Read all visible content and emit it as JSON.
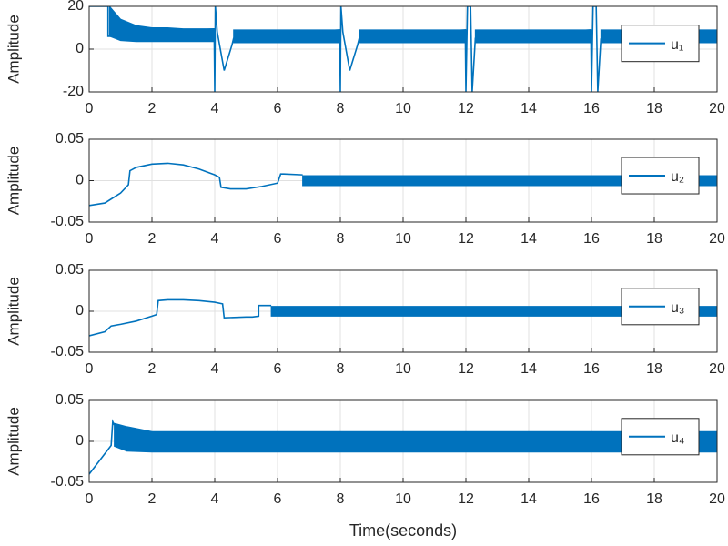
{
  "chart_data": [
    {
      "type": "line",
      "ylabel": "Amplitude",
      "xlim": [
        0,
        20
      ],
      "ylim": [
        -20,
        20
      ],
      "xticks": [
        0,
        2,
        4,
        6,
        8,
        10,
        12,
        14,
        16,
        18,
        20
      ],
      "yticks": [
        -20,
        0,
        20
      ],
      "grid": true,
      "legend": "right",
      "series": [
        {
          "name": "u₁",
          "color": "#0072bd",
          "x": [
            0,
            0.6,
            0.6,
            0.65,
            3.98,
            4.0,
            4.02,
            4.08,
            4.3,
            4.55,
            4.6,
            7.98,
            8.0,
            8.02,
            8.08,
            8.3,
            8.55,
            8.6,
            11.98,
            12.0,
            12.05,
            12.15,
            12.2,
            12.3,
            15.98,
            16.0,
            16.05,
            16.15,
            16.2,
            16.3
          ],
          "values": [
            20,
            20,
            6,
            6,
            9.5,
            -20,
            20,
            8,
            -10,
            2,
            5,
            9,
            -20,
            20,
            8,
            -10,
            2,
            5,
            9,
            -20,
            20,
            20,
            -20,
            5,
            9,
            -20,
            20,
            20,
            -20,
            5
          ]
        }
      ],
      "bands": [
        {
          "x": [
            0.65,
            1,
            1.5,
            2,
            2.5,
            3,
            4
          ],
          "upper": [
            20,
            14,
            11,
            10,
            10,
            9.5,
            9.5
          ],
          "lower": [
            6,
            4,
            3.5,
            3.5,
            3.5,
            3.5,
            3.5
          ]
        },
        {
          "x": [
            4.6,
            8
          ],
          "upper": [
            9,
            9
          ],
          "lower": [
            3,
            3
          ]
        },
        {
          "x": [
            8.6,
            12
          ],
          "upper": [
            9,
            9
          ],
          "lower": [
            3,
            3
          ]
        },
        {
          "x": [
            12.3,
            16
          ],
          "upper": [
            9,
            9
          ],
          "lower": [
            3,
            3
          ]
        },
        {
          "x": [
            16.3,
            20
          ],
          "upper": [
            9,
            9
          ],
          "lower": [
            3,
            3
          ]
        }
      ]
    },
    {
      "type": "line",
      "ylabel": "Amplitude",
      "xlim": [
        0,
        20
      ],
      "ylim": [
        -0.05,
        0.05
      ],
      "xticks": [
        0,
        2,
        4,
        6,
        8,
        10,
        12,
        14,
        16,
        18,
        20
      ],
      "yticks": [
        -0.05,
        0,
        0.05
      ],
      "grid": true,
      "legend": "right",
      "series": [
        {
          "name": "u₂",
          "color": "#0072bd",
          "x": [
            0,
            0.5,
            1,
            1.25,
            1.3,
            1.5,
            2,
            2.5,
            3,
            3.5,
            4,
            4.15,
            4.2,
            4.5,
            5,
            5.5,
            6,
            6.1,
            6.2,
            6.8
          ],
          "values": [
            -0.03,
            -0.027,
            -0.015,
            -0.005,
            0.012,
            0.016,
            0.02,
            0.021,
            0.019,
            0.014,
            0.007,
            0.004,
            -0.008,
            -0.01,
            -0.01,
            -0.007,
            -0.003,
            0.008,
            0.008,
            0.007
          ]
        }
      ],
      "bands": [
        {
          "x": [
            6.8,
            20
          ],
          "upper": [
            0.006,
            0.006
          ],
          "lower": [
            -0.006,
            -0.006
          ]
        }
      ]
    },
    {
      "type": "line",
      "ylabel": "Amplitude",
      "xlim": [
        0,
        20
      ],
      "ylim": [
        -0.05,
        0.05
      ],
      "xticks": [
        0,
        2,
        4,
        6,
        8,
        10,
        12,
        14,
        16,
        18,
        20
      ],
      "yticks": [
        -0.05,
        0,
        0.05
      ],
      "grid": true,
      "legend": "right",
      "series": [
        {
          "name": "u₃",
          "color": "#0072bd",
          "x": [
            0,
            0.5,
            0.7,
            1,
            1.5,
            2,
            2.15,
            2.2,
            2.5,
            3,
            3.5,
            4,
            4.25,
            4.3,
            5,
            5.2,
            5.4,
            5.4,
            5.6,
            5.8
          ],
          "values": [
            -0.03,
            -0.025,
            -0.018,
            -0.016,
            -0.012,
            -0.006,
            -0.004,
            0.013,
            0.014,
            0.014,
            0.013,
            0.011,
            0.009,
            -0.008,
            -0.007,
            -0.007,
            -0.006,
            0.007,
            0.007,
            0.007
          ]
        }
      ],
      "bands": [
        {
          "x": [
            5.8,
            20
          ],
          "upper": [
            0.006,
            0.006
          ],
          "lower": [
            -0.006,
            -0.006
          ]
        }
      ]
    },
    {
      "type": "line",
      "ylabel": "Amplitude",
      "xlabel": "Time(seconds)",
      "xlim": [
        0,
        20
      ],
      "ylim": [
        -0.05,
        0.05
      ],
      "xticks": [
        0,
        2,
        4,
        6,
        8,
        10,
        12,
        14,
        16,
        18,
        20
      ],
      "yticks": [
        -0.05,
        0,
        0.05
      ],
      "grid": true,
      "legend": "right",
      "series": [
        {
          "name": "u₄",
          "color": "#0072bd",
          "x": [
            0,
            0.3,
            0.6,
            0.7,
            0.75,
            0.8
          ],
          "values": [
            -0.04,
            -0.025,
            -0.01,
            -0.005,
            0.024,
            0.02
          ]
        }
      ],
      "bands": [
        {
          "x": [
            0.8,
            1.2,
            2,
            20
          ],
          "upper": [
            0.022,
            0.018,
            0.012,
            0.012
          ],
          "lower": [
            -0.006,
            -0.012,
            -0.013,
            -0.013
          ]
        }
      ]
    }
  ]
}
